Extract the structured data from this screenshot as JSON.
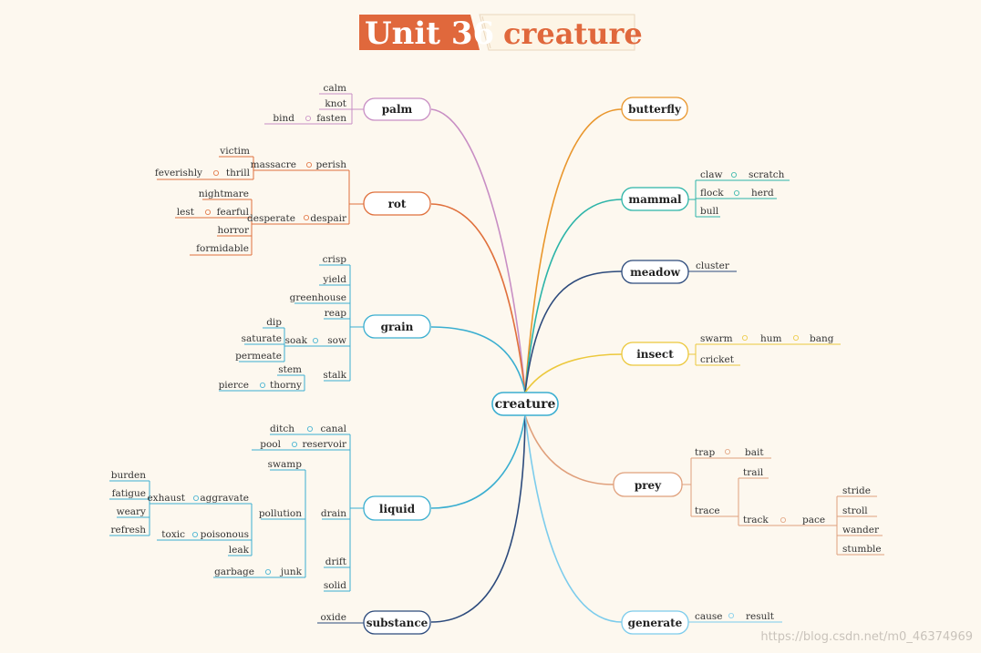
{
  "title": {
    "unit": "Unit 36",
    "word": "creature"
  },
  "center": "creature",
  "watermark": "https://blog.csdn.net/m0_46374969",
  "colors": {
    "palm": "#c88ec4",
    "rot": "#e0703c",
    "grain": "#3aaed0",
    "liquid": "#3aaed0",
    "substance": "#2c4a7c",
    "butterfly": "#e9962c",
    "mammal": "#2cb4a8",
    "meadow": "#2c4a7c",
    "insect": "#ecc83c",
    "prey": "#e0a07c",
    "generate": "#7cccec",
    "center": "#3aaed0"
  },
  "branches": {
    "palm": "palm",
    "rot": "rot",
    "grain": "grain",
    "liquid": "liquid",
    "substance": "substance",
    "butterfly": "butterfly",
    "mammal": "mammal",
    "meadow": "meadow",
    "insect": "insect",
    "prey": "prey",
    "generate": "generate"
  },
  "leaves": {
    "palm": [
      "calm",
      "knot",
      "fasten",
      "bind"
    ],
    "rot": [
      "perish",
      "massacre",
      "victim",
      "thrill",
      "feverishly",
      "despair",
      "desperate",
      "nightmare",
      "fearful",
      "lest",
      "horror",
      "formidable"
    ],
    "grain": [
      "crisp",
      "yield",
      "greenhouse",
      "reap",
      "sow",
      "soak",
      "dip",
      "saturate",
      "permeate",
      "stalk",
      "stem",
      "thorny",
      "pierce"
    ],
    "liquid": [
      "canal",
      "ditch",
      "reservoir",
      "pool",
      "drain",
      "swamp",
      "pollution",
      "aggravate",
      "exhaust",
      "burden",
      "fatigue",
      "weary",
      "refresh",
      "poisonous",
      "toxic",
      "leak",
      "junk",
      "garbage",
      "drift",
      "solid"
    ],
    "substance": [
      "oxide"
    ],
    "mammal": [
      "claw",
      "scratch",
      "flock",
      "herd",
      "bull"
    ],
    "meadow": [
      "cluster"
    ],
    "insect": [
      "swarm",
      "hum",
      "bang",
      "cricket"
    ],
    "prey": [
      "trap",
      "bait",
      "trace",
      "trail",
      "track",
      "pace",
      "stride",
      "stroll",
      "wander",
      "stumble"
    ],
    "generate": [
      "cause",
      "result"
    ]
  }
}
